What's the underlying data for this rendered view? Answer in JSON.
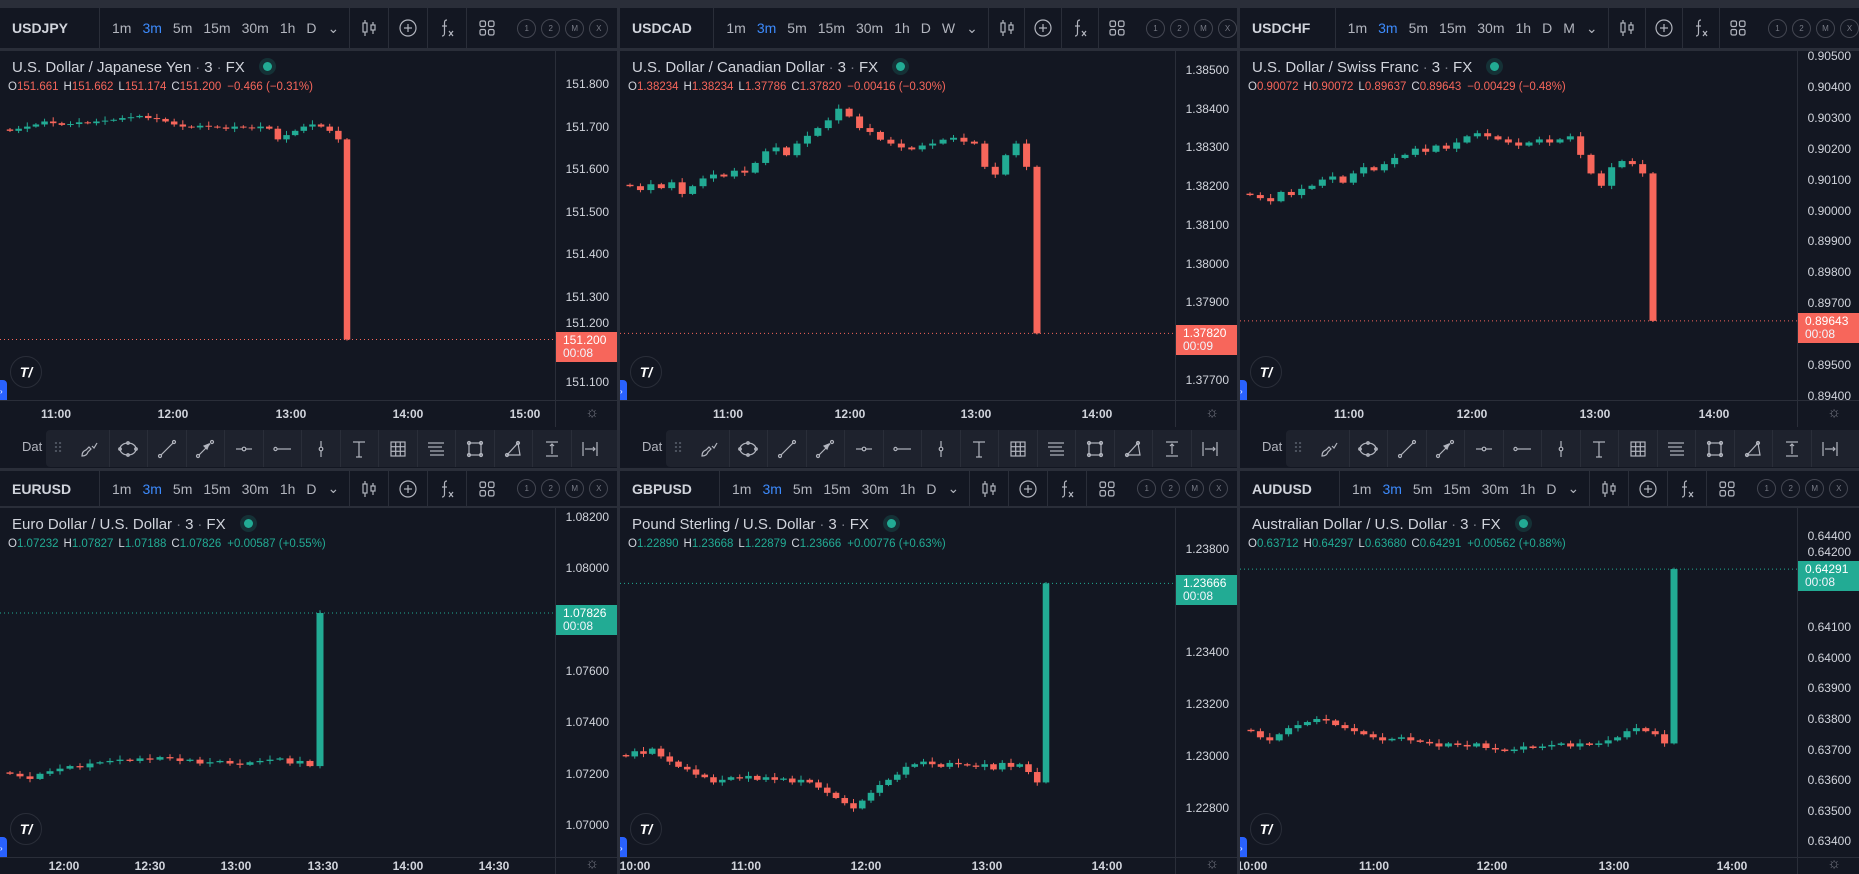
{
  "colors": {
    "up": "#22ab94",
    "down": "#f7665b",
    "background": "#131722",
    "text": "#d1d4dc",
    "accent": "#3d8bfd"
  },
  "draw_toolbar": {
    "label": "Dat",
    "tools": [
      "brush-icon",
      "ellipse-icon",
      "trend-line-icon",
      "arrow-line-icon",
      "horizontal-ray-icon",
      "horizontal-line-icon",
      "vertical-line-icon",
      "text-icon",
      "gann-grid-icon",
      "parallel-channel-icon",
      "rectangle-icon",
      "triangle-icon",
      "price-range-icon",
      "date-range-icon"
    ]
  },
  "header_buttons": {
    "chart_type": "candles-icon",
    "compare": "plus-circle-icon",
    "indicators": "fx-icon",
    "layout": "layout-grid-icon",
    "circles": [
      "1",
      "2",
      "M",
      "X"
    ]
  },
  "charts": [
    {
      "symbol": "USDJPY",
      "intervals": [
        "1m",
        "3m",
        "5m",
        "15m",
        "30m",
        "1h",
        "D"
      ],
      "active_interval": "3m",
      "title": "U.S. Dollar / Japanese Yen",
      "resolution": "3",
      "exchange": "FX",
      "ohlc": {
        "o": "151.661",
        "h": "151.662",
        "l": "151.174",
        "c": "151.200",
        "change": "−0.466 (−0.31%)"
      },
      "direction": "down",
      "price_ticks": [
        "151.800",
        "151.700",
        "151.600",
        "151.500",
        "151.400",
        "151.300",
        "151.200",
        "151.100"
      ],
      "y_range": [
        151.058,
        151.8775
      ],
      "last_price": "151.200",
      "countdown": "00:08",
      "time_ticks": [
        "11:00",
        "12:00",
        "13:00",
        "14:00",
        "15:00"
      ],
      "closes": [
        151.69,
        151.695,
        151.7,
        151.705,
        151.712,
        151.708,
        151.704,
        151.706,
        151.71,
        151.708,
        151.712,
        151.714,
        151.716,
        151.72,
        151.722,
        151.725,
        151.72,
        151.718,
        151.712,
        151.705,
        151.7,
        151.698,
        151.702,
        151.7,
        151.698,
        151.695,
        151.7,
        151.698,
        151.696,
        151.7,
        151.695,
        151.67,
        151.68,
        151.69,
        151.7,
        151.705,
        151.7,
        151.69,
        151.67,
        151.2
      ]
    },
    {
      "symbol": "USDCAD",
      "intervals": [
        "1m",
        "3m",
        "5m",
        "15m",
        "30m",
        "1h",
        "D",
        "W"
      ],
      "active_interval": "3m",
      "title": "U.S. Dollar / Canadian Dollar",
      "resolution": "3",
      "exchange": "FX",
      "ohlc": {
        "o": "1.38234",
        "h": "1.38234",
        "l": "1.37786",
        "c": "1.37820",
        "change": "−0.00416 (−0.30%)"
      },
      "direction": "down",
      "price_ticks": [
        "1.38500",
        "1.38400",
        "1.38300",
        "1.38200",
        "1.38100",
        "1.38000",
        "1.37900",
        "1.37700"
      ],
      "y_range": [
        1.37648,
        1.38549
      ],
      "last_price": "1.37820",
      "countdown": "00:09",
      "time_ticks": [
        "11:00",
        "12:00",
        "13:00",
        "14:00"
      ],
      "closes": [
        1.382,
        1.3819,
        1.38205,
        1.38195,
        1.3821,
        1.3818,
        1.382,
        1.3822,
        1.3823,
        1.38225,
        1.3824,
        1.38235,
        1.3826,
        1.3829,
        1.383,
        1.3828,
        1.3831,
        1.3833,
        1.3835,
        1.3837,
        1.384,
        1.3838,
        1.3835,
        1.3834,
        1.3832,
        1.3831,
        1.383,
        1.38295,
        1.38305,
        1.3831,
        1.3832,
        1.38325,
        1.38315,
        1.3831,
        1.3825,
        1.3823,
        1.3828,
        1.3831,
        1.3825,
        1.3782
      ]
    },
    {
      "symbol": "USDCHF",
      "intervals": [
        "1m",
        "3m",
        "5m",
        "15m",
        "30m",
        "1h",
        "D",
        "M"
      ],
      "active_interval": "3m",
      "title": "U.S. Dollar / Swiss Franc",
      "resolution": "3",
      "exchange": "FX",
      "ohlc": {
        "o": "0.90072",
        "h": "0.90072",
        "l": "0.89637",
        "c": "0.89643",
        "change": "−0.00429 (−0.48%)"
      },
      "direction": "down",
      "price_ticks": [
        "0.90500",
        "0.90400",
        "0.90300",
        "0.90200",
        "0.90100",
        "0.90000",
        "0.89900",
        "0.89800",
        "0.89700",
        "0.89500",
        "0.89400"
      ],
      "y_range": [
        0.89387,
        0.90516
      ],
      "last_price": "0.89643",
      "countdown": "00:08",
      "time_ticks": [
        "11:00",
        "12:00",
        "13:00",
        "14:00"
      ],
      "closes": [
        0.9005,
        0.9004,
        0.9003,
        0.9006,
        0.9005,
        0.9007,
        0.9008,
        0.901,
        0.9011,
        0.9009,
        0.9012,
        0.9014,
        0.9013,
        0.9015,
        0.9017,
        0.9018,
        0.902,
        0.9019,
        0.9021,
        0.902,
        0.9022,
        0.9024,
        0.9025,
        0.9024,
        0.9023,
        0.9022,
        0.9021,
        0.9022,
        0.9023,
        0.9022,
        0.9023,
        0.9024,
        0.9018,
        0.9012,
        0.9008,
        0.9014,
        0.9016,
        0.9015,
        0.9012,
        0.89643
      ]
    },
    {
      "symbol": "EURUSD",
      "intervals": [
        "1m",
        "3m",
        "5m",
        "15m",
        "30m",
        "1h",
        "D"
      ],
      "active_interval": "3m",
      "title": "Euro Dollar / U.S. Dollar",
      "resolution": "3",
      "exchange": "FX",
      "ohlc": {
        "o": "1.07232",
        "h": "1.07827",
        "l": "1.07188",
        "c": "1.07826",
        "change": "+0.00587 (+0.55%)"
      },
      "direction": "up",
      "price_ticks": [
        "1.08200",
        "1.08000",
        "1.07600",
        "1.07400",
        "1.07200",
        "1.07000"
      ],
      "y_range": [
        1.06876,
        1.08235
      ],
      "last_price": "1.07826",
      "countdown": "00:08",
      "time_ticks": [
        "12:00",
        "12:30",
        "13:00",
        "13:30",
        "14:00",
        "14:30"
      ],
      "closes": [
        1.072,
        1.0719,
        1.0718,
        1.072,
        1.0721,
        1.0722,
        1.0723,
        1.07225,
        1.0724,
        1.07245,
        1.0725,
        1.07255,
        1.0725,
        1.0726,
        1.07255,
        1.07265,
        1.0726,
        1.0725,
        1.07255,
        1.0724,
        1.07245,
        1.0725,
        1.0724,
        1.07235,
        1.07245,
        1.0725,
        1.07255,
        1.0726,
        1.0724,
        1.0725,
        1.0723,
        1.07826
      ]
    },
    {
      "symbol": "GBPUSD",
      "intervals": [
        "1m",
        "3m",
        "5m",
        "15m",
        "30m",
        "1h",
        "D"
      ],
      "active_interval": "3m",
      "title": "Pound Sterling / U.S. Dollar",
      "resolution": "3",
      "exchange": "FX",
      "ohlc": {
        "o": "1.22890",
        "h": "1.23668",
        "l": "1.22879",
        "c": "1.23666",
        "change": "+0.00776 (+0.63%)"
      },
      "direction": "up",
      "price_ticks": [
        "1.23800",
        "1.23400",
        "1.23200",
        "1.23000",
        "1.22800"
      ],
      "y_range": [
        1.22613,
        1.23956
      ],
      "last_price": "1.23666",
      "countdown": "00:08",
      "time_ticks": [
        "10:00",
        "11:00",
        "12:00",
        "13:00",
        "14:00"
      ],
      "closes": [
        1.23,
        1.2302,
        1.2301,
        1.2303,
        1.23,
        1.2298,
        1.2296,
        1.2295,
        1.2293,
        1.2292,
        1.229,
        1.2291,
        1.2292,
        1.22915,
        1.22925,
        1.2291,
        1.2292,
        1.2291,
        1.22915,
        1.229,
        1.2291,
        1.229,
        1.2288,
        1.2286,
        1.2284,
        1.2282,
        1.228,
        1.2283,
        1.2286,
        1.2289,
        1.2291,
        1.2293,
        1.2296,
        1.2297,
        1.2298,
        1.2297,
        1.2296,
        1.22975,
        1.2297,
        1.22965,
        1.2296,
        1.2297,
        1.2295,
        1.22975,
        1.2296,
        1.2297,
        1.2294,
        1.229,
        1.23666
      ]
    },
    {
      "symbol": "AUDUSD",
      "intervals": [
        "1m",
        "3m",
        "5m",
        "15m",
        "30m",
        "1h",
        "D"
      ],
      "active_interval": "3m",
      "title": "Australian Dollar / U.S. Dollar",
      "resolution": "3",
      "exchange": "FX",
      "ohlc": {
        "o": "0.63712",
        "h": "0.64297",
        "l": "0.63680",
        "c": "0.64291",
        "change": "+0.00562 (+0.88%)"
      },
      "direction": "up",
      "price_ticks": [
        "0.64400",
        "0.64200",
        "0.64100",
        "0.64000",
        "0.63900",
        "0.63800",
        "0.63700",
        "0.63600",
        "0.63500",
        "0.63400"
      ],
      "y_range": [
        0.63348,
        0.64491
      ],
      "last_price": "0.64291",
      "countdown": "00:08",
      "time_ticks": [
        "10:00",
        "11:00",
        "12:00",
        "13:00",
        "14:00"
      ],
      "closes": [
        0.6376,
        0.6374,
        0.6373,
        0.6375,
        0.6377,
        0.6378,
        0.6379,
        0.638,
        0.63795,
        0.6378,
        0.6377,
        0.6376,
        0.6375,
        0.6374,
        0.6373,
        0.63735,
        0.6374,
        0.6373,
        0.63725,
        0.6372,
        0.6371,
        0.6372,
        0.63715,
        0.6371,
        0.6372,
        0.63705,
        0.637,
        0.63695,
        0.637,
        0.6371,
        0.63705,
        0.6371,
        0.63715,
        0.6372,
        0.6371,
        0.6372,
        0.63715,
        0.6372,
        0.6373,
        0.6374,
        0.6376,
        0.6377,
        0.6376,
        0.6375,
        0.6372,
        0.64291
      ]
    }
  ]
}
